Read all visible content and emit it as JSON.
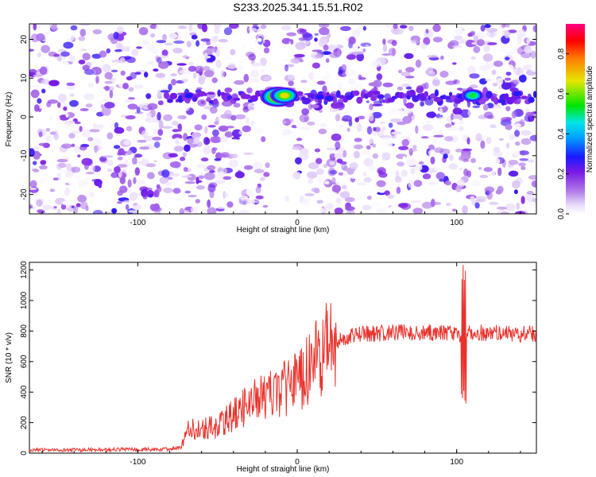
{
  "title": "S233.2025.341.15.51.R02",
  "colors": {
    "snr_line": "#e8312b",
    "frame": "#000000"
  },
  "chart_data": [
    {
      "type": "heatmap",
      "xlabel": "Height of straight line (km)",
      "ylabel": "Frequency (Hz)",
      "xlim": [
        -168,
        150
      ],
      "ylim": [
        -25,
        24
      ],
      "xticks": [
        -100,
        0,
        100
      ],
      "yticks": [
        -20,
        -10,
        0,
        10,
        20
      ],
      "colorbar": {
        "label": "Normalized spectral amplitude",
        "range": [
          0.0,
          0.95
        ],
        "ticks": [
          0.0,
          0.2,
          0.4,
          0.6,
          0.8
        ],
        "colormap": "white-purple-blue-cyan-green-yellow-red-magenta"
      },
      "band_center_hz": 5,
      "blank_x_range": [
        -18,
        -8
      ],
      "hotspots": [
        {
          "x": -68,
          "y": 5.5,
          "v": 0.3
        },
        {
          "x": -60,
          "y": 6,
          "v": 0.25
        },
        {
          "x": -12,
          "y": 5.2,
          "v": 0.9
        },
        {
          "x": -8,
          "y": 5.5,
          "v": 0.75
        },
        {
          "x": 14,
          "y": 5.2,
          "v": 0.3
        },
        {
          "x": 20,
          "y": 4.8,
          "v": 0.35
        },
        {
          "x": 88,
          "y": 4.5,
          "v": 0.25
        },
        {
          "x": 103,
          "y": 5.2,
          "v": 0.3
        },
        {
          "x": 110,
          "y": 5.5,
          "v": 0.55
        },
        {
          "x": 138,
          "y": 6,
          "v": 0.3
        }
      ]
    },
    {
      "type": "line",
      "xlabel": "Height of straight line (km)",
      "ylabel": "SNR (10 * v/v)",
      "xlim": [
        -168,
        150
      ],
      "ylim": [
        0,
        1250
      ],
      "xticks": [
        -100,
        0,
        100
      ],
      "yticks": [
        0,
        200,
        400,
        600,
        800,
        1000,
        1200
      ],
      "profile": [
        [
          -168,
          20
        ],
        [
          -80,
          25
        ],
        [
          -73,
          40
        ],
        [
          -68,
          160
        ],
        [
          -50,
          170
        ],
        [
          -40,
          250
        ],
        [
          -30,
          330
        ],
        [
          -15,
          380
        ],
        [
          0,
          470
        ],
        [
          10,
          600
        ],
        [
          20,
          700
        ],
        [
          30,
          760
        ],
        [
          40,
          780
        ],
        [
          60,
          790
        ],
        [
          80,
          790
        ],
        [
          100,
          780
        ],
        [
          120,
          790
        ],
        [
          150,
          780
        ]
      ],
      "spike": {
        "x": [
          103,
          106
        ],
        "max": 1240,
        "min": 290
      }
    }
  ]
}
